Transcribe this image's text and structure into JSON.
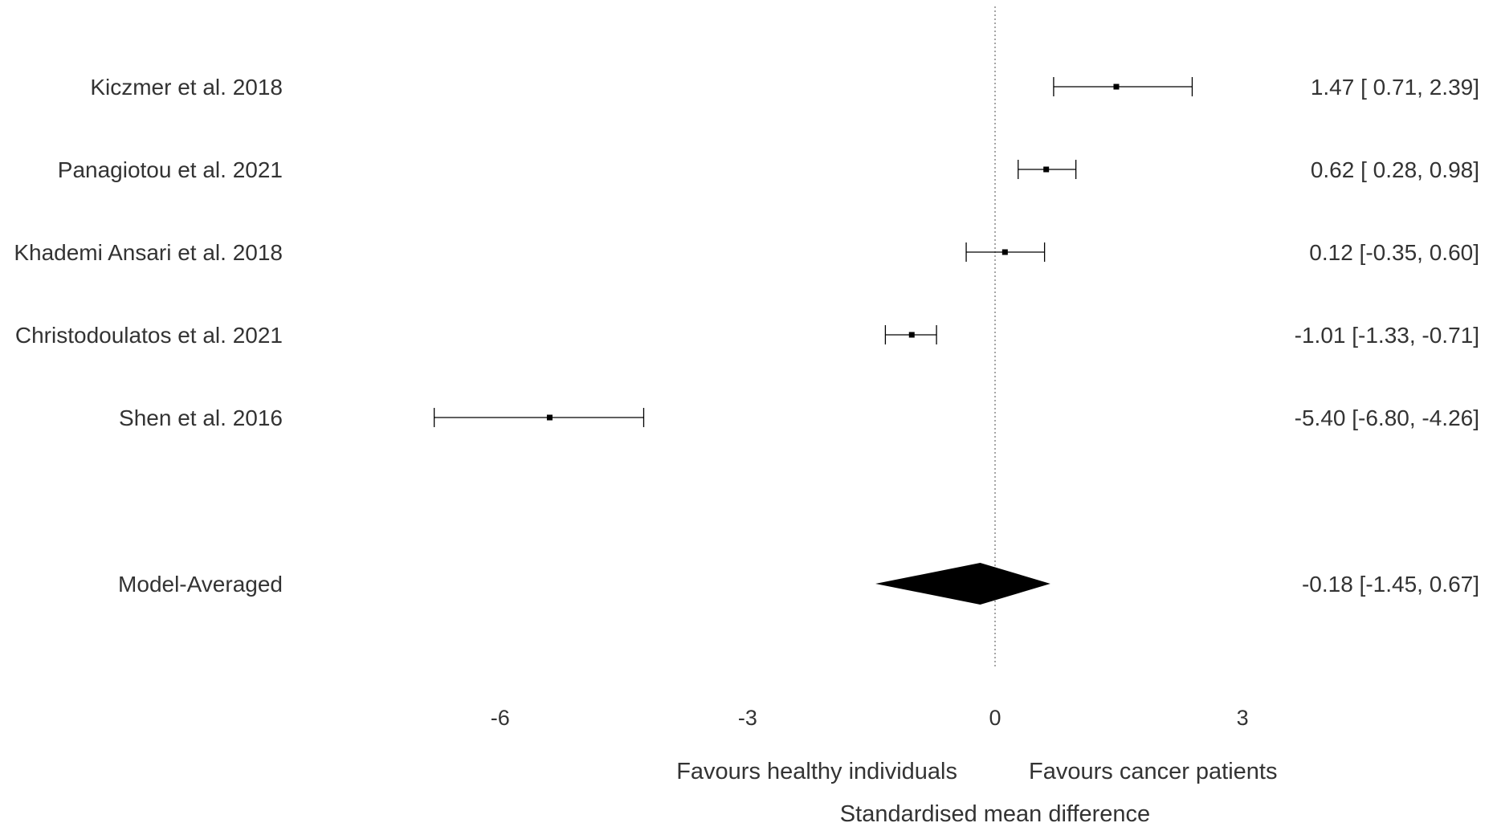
{
  "chart_data": {
    "type": "forest",
    "xlabel": "Standardised mean difference",
    "direction_labels": {
      "left": "Favours healthy individuals",
      "right": "Favours cancer patients"
    },
    "xticks": [
      -6,
      -3,
      0,
      3
    ],
    "xlim": [
      -7.5,
      4.8
    ],
    "reference_line": 0,
    "studies": [
      {
        "name": "Kiczmer et al. 2018",
        "estimate": 1.47,
        "lower": 0.71,
        "upper": 2.39,
        "label": "1.47 [ 0.71,  2.39]"
      },
      {
        "name": "Panagiotou et al. 2021",
        "estimate": 0.62,
        "lower": 0.28,
        "upper": 0.98,
        "label": "0.62 [ 0.28,  0.98]"
      },
      {
        "name": "Khademi Ansari et al. 2018",
        "estimate": 0.12,
        "lower": -0.35,
        "upper": 0.6,
        "label": "0.12 [-0.35,  0.60]"
      },
      {
        "name": "Christodoulatos et al. 2021",
        "estimate": -1.01,
        "lower": -1.33,
        "upper": -0.71,
        "label": "-1.01 [-1.33, -0.71]"
      },
      {
        "name": "Shen et al. 2016",
        "estimate": -5.4,
        "lower": -6.8,
        "upper": -4.26,
        "label": "-5.40 [-6.80, -4.26]"
      }
    ],
    "summary": {
      "name": "Model-Averaged",
      "estimate": -0.18,
      "lower": -1.45,
      "upper": 0.67,
      "label": "-0.18 [-1.45,  0.67]"
    }
  }
}
